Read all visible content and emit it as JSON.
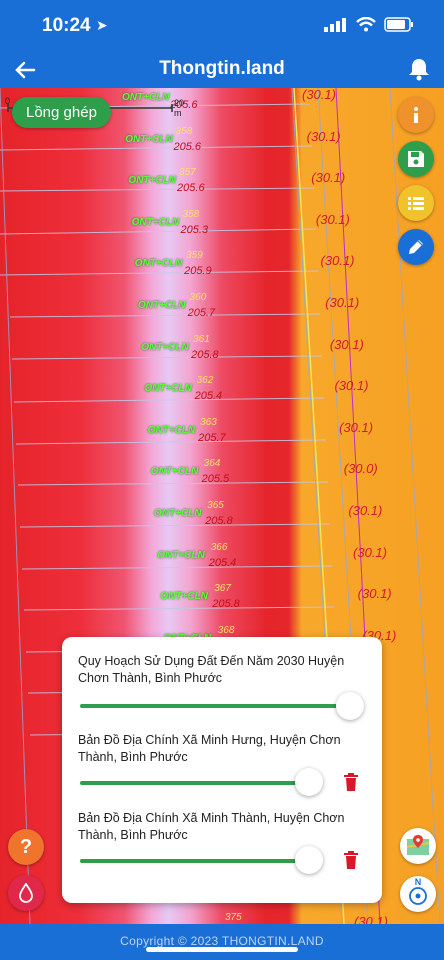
{
  "status_bar": {
    "time": "10:24"
  },
  "header": {
    "title": "Thongtin.land"
  },
  "map": {
    "scale": {
      "zero": "0",
      "mid": "20 m"
    },
    "layer_chip": "Lồng ghép",
    "parcels": [
      {
        "code": "ONT+CLN",
        "number": "",
        "area": "205.6",
        "zone": "(30.1)"
      },
      {
        "code": "ONT+CLN",
        "number": "358",
        "area": "205.6",
        "zone": "(30.1)"
      },
      {
        "code": "ONT+CLN",
        "number": "357",
        "area": "205.6",
        "zone": "(30.1)"
      },
      {
        "code": "ONT+CLN",
        "number": "358",
        "area": "205.3",
        "zone": "(30.1)"
      },
      {
        "code": "ONT+CLN",
        "number": "359",
        "area": "205.9",
        "zone": "(30.1)"
      },
      {
        "code": "ONT+CLN",
        "number": "360",
        "area": "205.7",
        "zone": "(30.1)"
      },
      {
        "code": "ONT+CLN",
        "number": "361",
        "area": "205.8",
        "zone": "(30.1)"
      },
      {
        "code": "ONT+CLN",
        "number": "362",
        "area": "205.4",
        "zone": "(30.1)"
      },
      {
        "code": "ONT+CLN",
        "number": "363",
        "area": "205.7",
        "zone": "(30.1)"
      },
      {
        "code": "ONT+CLN",
        "number": "364",
        "area": "205.5",
        "zone": "(30.0)"
      },
      {
        "code": "ONT+CLN",
        "number": "365",
        "area": "205.8",
        "zone": "(30.1)"
      },
      {
        "code": "ONT+CLN",
        "number": "366",
        "area": "205.4",
        "zone": "(30.1)"
      },
      {
        "code": "ONT+CLN",
        "number": "367",
        "area": "205.8",
        "zone": "(30.1)"
      },
      {
        "code": "ONT+CLN",
        "number": "368",
        "area": "",
        "zone": "(30.1)"
      }
    ],
    "bottom_parcel": {
      "number": "375",
      "zone": "(30.1)"
    }
  },
  "layers_panel": {
    "layers": [
      {
        "title": "Quy Hoạch Sử Dụng Đất Đến Năm 2030 Huyện Chơn Thành, Bình Phước",
        "opacity": 1.0,
        "deletable": false
      },
      {
        "title": "Bản Đồ Địa Chính Xã Minh Hưng, Huyện Chơn Thành, Bình Phước",
        "opacity": 0.8,
        "deletable": true
      },
      {
        "title": "Bản Đồ Địa Chính Xã Minh Thành, Huyện Chơn Thành, Bình Phước",
        "opacity": 0.8,
        "deletable": true
      }
    ]
  },
  "buttons": {
    "info_icon": "info-icon",
    "save_icon": "save-icon",
    "list_icon": "list-icon",
    "edit_icon": "edit-pencil-icon",
    "help_label": "?",
    "compass_label": "N"
  },
  "colors": {
    "brand_blue": "#1a6fd6",
    "accent_green": "#2e9e4a",
    "warn_orange": "#f0922b",
    "delete_red": "#d8172a"
  },
  "footer": {
    "copyright": "Copyright © 2023 THONGTIN.LAND"
  }
}
